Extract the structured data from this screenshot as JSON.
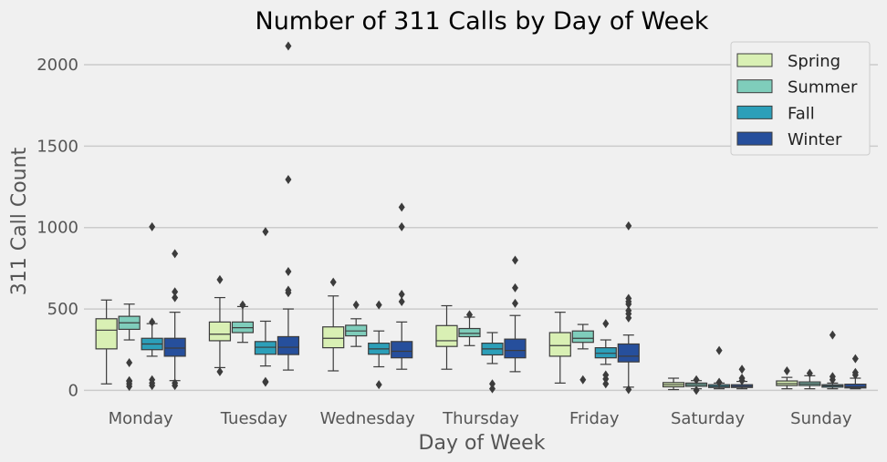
{
  "chart_data": {
    "type": "box",
    "title": "Number of 311 Calls by Day of Week",
    "xlabel": "Day of Week",
    "ylabel": "311 Call Count",
    "ylim": [
      -20,
      2140
    ],
    "yticks": [
      0,
      500,
      1000,
      1500,
      2000
    ],
    "grid": "horizontal",
    "legend_position": "top-right",
    "categories": [
      "Monday",
      "Tuesday",
      "Wednesday",
      "Thursday",
      "Friday",
      "Saturday",
      "Sunday"
    ],
    "series": [
      {
        "name": "Spring",
        "color": "#d9f0b4",
        "boxes": [
          {
            "whislo": 40,
            "q1": 255,
            "med": 370,
            "q3": 440,
            "whishi": 555,
            "fliers": []
          },
          {
            "whislo": 140,
            "q1": 305,
            "med": 345,
            "q3": 420,
            "whishi": 570,
            "fliers": [
              115,
              680
            ]
          },
          {
            "whislo": 120,
            "q1": 262,
            "med": 320,
            "q3": 390,
            "whishi": 580,
            "fliers": [
              665
            ]
          },
          {
            "whislo": 130,
            "q1": 270,
            "med": 305,
            "q3": 398,
            "whishi": 520,
            "fliers": []
          },
          {
            "whislo": 45,
            "q1": 210,
            "med": 275,
            "q3": 355,
            "whishi": 480,
            "fliers": []
          },
          {
            "whislo": 5,
            "q1": 22,
            "med": 35,
            "q3": 48,
            "whishi": 75,
            "fliers": []
          },
          {
            "whislo": 10,
            "q1": 30,
            "med": 42,
            "q3": 58,
            "whishi": 80,
            "fliers": [
              120
            ]
          }
        ]
      },
      {
        "name": "Summer",
        "color": "#7fcdbb",
        "boxes": [
          {
            "whislo": 310,
            "q1": 375,
            "med": 415,
            "q3": 455,
            "whishi": 530,
            "fliers": [
              25,
              40,
              55,
              60,
              170
            ]
          },
          {
            "whislo": 295,
            "q1": 355,
            "med": 385,
            "q3": 420,
            "whishi": 515,
            "fliers": [
              525
            ]
          },
          {
            "whislo": 270,
            "q1": 335,
            "med": 365,
            "q3": 400,
            "whishi": 440,
            "fliers": [
              525
            ]
          },
          {
            "whislo": 275,
            "q1": 330,
            "med": 350,
            "q3": 380,
            "whishi": 450,
            "fliers": [
              465
            ]
          },
          {
            "whislo": 255,
            "q1": 295,
            "med": 320,
            "q3": 365,
            "whishi": 405,
            "fliers": [
              65
            ]
          },
          {
            "whislo": 10,
            "q1": 25,
            "med": 35,
            "q3": 45,
            "whishi": 60,
            "fliers": [
              0,
              65
            ]
          },
          {
            "whislo": 10,
            "q1": 30,
            "med": 40,
            "q3": 52,
            "whishi": 90,
            "fliers": [
              105
            ]
          }
        ]
      },
      {
        "name": "Fall",
        "color": "#2c9fb9",
        "boxes": [
          {
            "whislo": 210,
            "q1": 250,
            "med": 285,
            "q3": 320,
            "whishi": 410,
            "fliers": [
              30,
              45,
              65,
              420,
              1005
            ]
          },
          {
            "whislo": 150,
            "q1": 222,
            "med": 265,
            "q3": 300,
            "whishi": 425,
            "fliers": [
              50,
              55,
              975
            ]
          },
          {
            "whislo": 145,
            "q1": 222,
            "med": 255,
            "q3": 290,
            "whishi": 365,
            "fliers": [
              35,
              525
            ]
          },
          {
            "whislo": 165,
            "q1": 218,
            "med": 255,
            "q3": 290,
            "whishi": 355,
            "fliers": [
              10,
              40
            ]
          },
          {
            "whislo": 160,
            "q1": 200,
            "med": 228,
            "q3": 262,
            "whishi": 310,
            "fliers": [
              40,
              70,
              95,
              410
            ]
          },
          {
            "whislo": 10,
            "q1": 18,
            "med": 25,
            "q3": 35,
            "whishi": 45,
            "fliers": [
              50,
              245
            ]
          },
          {
            "whislo": 10,
            "q1": 20,
            "med": 28,
            "q3": 35,
            "whishi": 45,
            "fliers": [
              65,
              85,
              340
            ]
          }
        ]
      },
      {
        "name": "Winter",
        "color": "#264f9c",
        "boxes": [
          {
            "whislo": 60,
            "q1": 210,
            "med": 260,
            "q3": 320,
            "whishi": 480,
            "fliers": [
              30,
              45,
              570,
              605,
              840
            ]
          },
          {
            "whislo": 125,
            "q1": 220,
            "med": 265,
            "q3": 330,
            "whishi": 500,
            "fliers": [
              600,
              615,
              730,
              1295,
              2115
            ]
          },
          {
            "whislo": 130,
            "q1": 200,
            "med": 240,
            "q3": 300,
            "whishi": 420,
            "fliers": [
              545,
              590,
              1005,
              1125
            ]
          },
          {
            "whislo": 115,
            "q1": 200,
            "med": 245,
            "q3": 315,
            "whishi": 460,
            "fliers": [
              535,
              630,
              800
            ]
          },
          {
            "whislo": 20,
            "q1": 175,
            "med": 210,
            "q3": 285,
            "whishi": 340,
            "fliers": [
              5,
              445,
              470,
              490,
              530,
              545,
              565,
              1010
            ]
          },
          {
            "whislo": 10,
            "q1": 18,
            "med": 25,
            "q3": 35,
            "whishi": 55,
            "fliers": [
              60,
              75,
              130
            ]
          },
          {
            "whislo": 10,
            "q1": 15,
            "med": 22,
            "q3": 38,
            "whishi": 75,
            "fliers": [
              95,
              110,
              195
            ]
          }
        ]
      }
    ]
  }
}
